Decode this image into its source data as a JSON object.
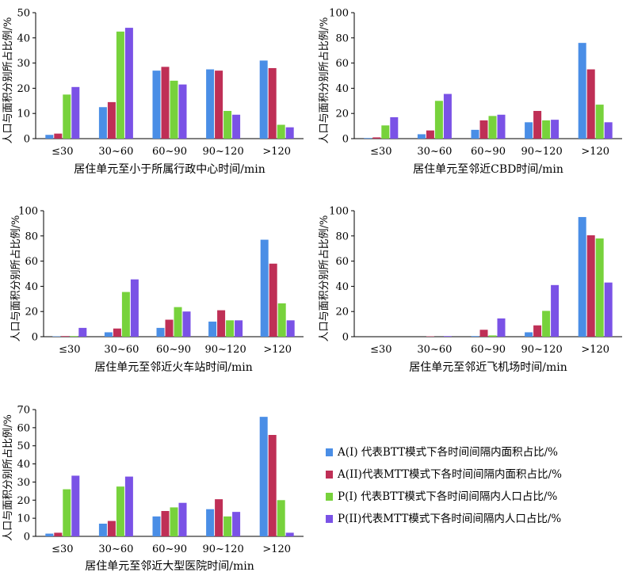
{
  "colors": {
    "A1": "#4a8ee6",
    "A2": "#bf2f56",
    "P1": "#77d23c",
    "P2": "#7a52e6"
  },
  "legend": [
    {
      "key": "A1",
      "label": "A(I) 代表BTT模式下各时间间隔内面积占比/%"
    },
    {
      "key": "A2",
      "label": "A(II)代表MTT模式下各时间间隔内面积占比/%"
    },
    {
      "key": "P1",
      "label": "P(I) 代表BTT模式下各时间间隔内人口占比/%"
    },
    {
      "key": "P2",
      "label": "P(II)代表MTT模式下各时间间隔内人口占比/%"
    }
  ],
  "chart_data": [
    {
      "type": "bar",
      "categories": [
        "≤30",
        "30~60",
        "60~90",
        "90~120",
        ">120"
      ],
      "xlabel": "居住单元至小于所属行政中心时间/min",
      "ylabel": "人口与面积分别所占比例/%",
      "ylim": [
        0,
        50
      ],
      "yticks": [
        0,
        10,
        20,
        30,
        40,
        50
      ],
      "series": [
        {
          "key": "A1",
          "values": [
            1.5,
            12.5,
            27,
            27.5,
            31
          ]
        },
        {
          "key": "A2",
          "values": [
            2,
            14.5,
            28.5,
            27,
            28
          ]
        },
        {
          "key": "P1",
          "values": [
            17.5,
            42.5,
            23,
            11,
            5.5
          ]
        },
        {
          "key": "P2",
          "values": [
            20.5,
            44,
            21.5,
            9.5,
            4.5
          ]
        }
      ]
    },
    {
      "type": "bar",
      "categories": [
        "≤30",
        "30~60",
        "60~90",
        "90~120",
        ">120"
      ],
      "xlabel": "居住单元至邻近CBD时间/min",
      "ylabel": "人口与面积分别所占比例/%",
      "ylim": [
        0,
        100
      ],
      "yticks": [
        0,
        20,
        40,
        60,
        80,
        100
      ],
      "series": [
        {
          "key": "A1",
          "values": [
            0.5,
            3.5,
            7,
            13,
            76
          ]
        },
        {
          "key": "A2",
          "values": [
            1,
            6.5,
            14.5,
            22,
            55
          ]
        },
        {
          "key": "P1",
          "values": [
            10.5,
            30,
            18,
            14.5,
            27
          ]
        },
        {
          "key": "P2",
          "values": [
            17,
            35.5,
            19,
            15,
            13
          ]
        }
      ]
    },
    {
      "type": "bar",
      "categories": [
        "≤30",
        "30~60",
        "60~90",
        "90~120",
        ">120"
      ],
      "xlabel": "居住单元至邻近火车站时间/min",
      "ylabel": "人口与面积分别所占比例/%",
      "ylim": [
        0,
        100
      ],
      "yticks": [
        0,
        20,
        40,
        60,
        80,
        100
      ],
      "series": [
        {
          "key": "A1",
          "values": [
            0.3,
            3.5,
            7,
            12,
            77
          ]
        },
        {
          "key": "A2",
          "values": [
            0.5,
            6.5,
            13.5,
            21,
            58
          ]
        },
        {
          "key": "P1",
          "values": [
            0.5,
            35.5,
            23.5,
            13,
            26.5
          ]
        },
        {
          "key": "P2",
          "values": [
            7,
            45.5,
            20,
            13,
            13
          ]
        }
      ]
    },
    {
      "type": "bar",
      "categories": [
        "≤30",
        "30~60",
        "60~90",
        "90~120",
        ">120"
      ],
      "xlabel": "居住单元至邻近飞机场时间/min",
      "ylabel": "人口与面积分别所占比例/%",
      "ylim": [
        0,
        100
      ],
      "yticks": [
        0,
        20,
        40,
        60,
        80,
        100
      ],
      "series": [
        {
          "key": "A1",
          "values": [
            0,
            0,
            0.5,
            3.5,
            95
          ]
        },
        {
          "key": "A2",
          "values": [
            0,
            0.3,
            5.5,
            9,
            80.5
          ]
        },
        {
          "key": "P1",
          "values": [
            0,
            0,
            1,
            20.5,
            78
          ]
        },
        {
          "key": "P2",
          "values": [
            0,
            0.5,
            14.5,
            41,
            43
          ]
        }
      ]
    },
    {
      "type": "bar",
      "categories": [
        "≤30",
        "30~60",
        "60~90",
        "90~120",
        ">120"
      ],
      "xlabel": "居住单元至邻近大型医院时间/min",
      "ylabel": "人口与面积分别所占比例/%",
      "ylim": [
        0,
        70
      ],
      "yticks": [
        0,
        10,
        20,
        30,
        40,
        50,
        60,
        70
      ],
      "series": [
        {
          "key": "A1",
          "values": [
            1.5,
            7,
            11,
            15,
            66
          ]
        },
        {
          "key": "A2",
          "values": [
            2,
            8.5,
            14,
            20.5,
            56
          ]
        },
        {
          "key": "P1",
          "values": [
            26,
            27.5,
            16,
            11,
            20
          ]
        },
        {
          "key": "P2",
          "values": [
            33.5,
            33,
            18.5,
            13.5,
            2
          ]
        }
      ]
    }
  ]
}
